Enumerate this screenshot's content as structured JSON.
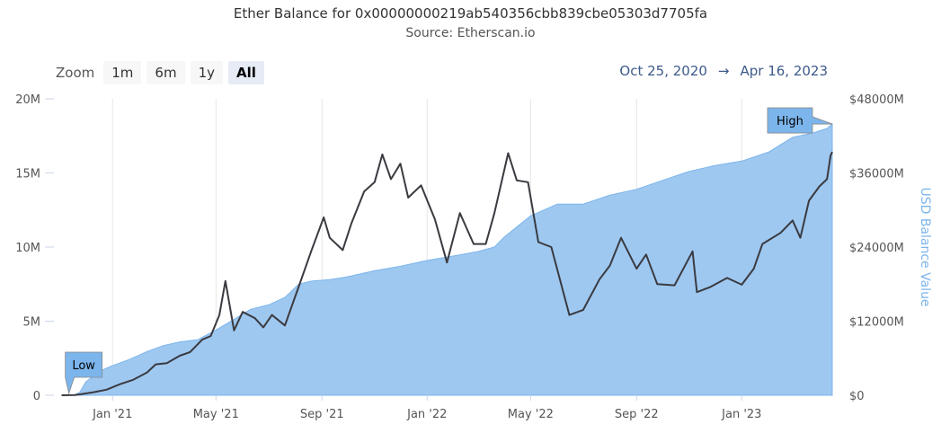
{
  "header": {
    "title": "Ether Balance for 0x00000000219ab540356cbb839cbe05303d7705fa",
    "subtitle": "Source: Etherscan.io"
  },
  "zoom": {
    "label": "Zoom",
    "buttons": [
      {
        "label": "1m",
        "active": false
      },
      {
        "label": "6m",
        "active": false
      },
      {
        "label": "1y",
        "active": false
      },
      {
        "label": "All",
        "active": true
      }
    ]
  },
  "range": {
    "from": "Oct 25, 2020",
    "arrow": "→",
    "to": "Apr 16, 2023"
  },
  "colors": {
    "area_fill": "#9ec8f0",
    "area_line": "#7cb5ec",
    "usd_line": "#3a3a40",
    "grid": "#e6e6e6",
    "flag_fill": "#7cb5ec"
  },
  "chart_data": {
    "type": "area",
    "title": "Ether Balance for 0x00000000219ab540356cbb839cbe05303d7705fa",
    "subtitle": "Source: Etherscan.io",
    "xlabel": "",
    "ylabel_left": "",
    "ylabel_right": "USD Balance Value",
    "xlim": [
      "2020-10-25",
      "2023-04-16"
    ],
    "ylim_left": [
      0,
      20000000
    ],
    "ylim_right": [
      0,
      48000000000
    ],
    "grid": "vertical",
    "legend": "none",
    "x_ticks": [
      {
        "date": "2021-01-01",
        "label": "Jan '21"
      },
      {
        "date": "2021-05-01",
        "label": "May '21"
      },
      {
        "date": "2021-09-01",
        "label": "Sep '21"
      },
      {
        "date": "2022-01-01",
        "label": "Jan '22"
      },
      {
        "date": "2022-05-01",
        "label": "May '22"
      },
      {
        "date": "2022-09-01",
        "label": "Sep '22"
      },
      {
        "date": "2023-01-01",
        "label": "Jan '23"
      }
    ],
    "y_ticks_left": [
      {
        "value": 0,
        "label": "0"
      },
      {
        "value": 5000000,
        "label": "5M"
      },
      {
        "value": 10000000,
        "label": "10M"
      },
      {
        "value": 15000000,
        "label": "15M"
      },
      {
        "value": 20000000,
        "label": "20M"
      }
    ],
    "y_ticks_right": [
      {
        "value": 0,
        "label": "$0"
      },
      {
        "value": 12000000000,
        "label": "$12000M"
      },
      {
        "value": 24000000000,
        "label": "$24000M"
      },
      {
        "value": 36000000000,
        "label": "$36000M"
      },
      {
        "value": 48000000000,
        "label": "$48000M"
      }
    ],
    "series": [
      {
        "name": "",
        "axis": "left",
        "kind": "area",
        "points": [
          [
            "2020-11-03",
            0
          ],
          [
            "2020-11-18",
            30000
          ],
          [
            "2020-11-24",
            200000
          ],
          [
            "2020-12-01",
            900000
          ],
          [
            "2020-12-10",
            1300000
          ],
          [
            "2020-12-20",
            1700000
          ],
          [
            "2021-01-01",
            2000000
          ],
          [
            "2021-01-20",
            2400000
          ],
          [
            "2021-02-10",
            2950000
          ],
          [
            "2021-03-01",
            3350000
          ],
          [
            "2021-03-20",
            3600000
          ],
          [
            "2021-04-10",
            3750000
          ],
          [
            "2021-05-01",
            4400000
          ],
          [
            "2021-05-20",
            5050000
          ],
          [
            "2021-06-10",
            5800000
          ],
          [
            "2021-07-01",
            6100000
          ],
          [
            "2021-07-20",
            6600000
          ],
          [
            "2021-08-05",
            7500000
          ],
          [
            "2021-08-20",
            7700000
          ],
          [
            "2021-09-10",
            7800000
          ],
          [
            "2021-10-01",
            8000000
          ],
          [
            "2021-11-01",
            8400000
          ],
          [
            "2021-12-01",
            8700000
          ],
          [
            "2022-01-01",
            9100000
          ],
          [
            "2022-02-01",
            9400000
          ],
          [
            "2022-03-01",
            9700000
          ],
          [
            "2022-03-20",
            10000000
          ],
          [
            "2022-04-01",
            10700000
          ],
          [
            "2022-05-01",
            12100000
          ],
          [
            "2022-06-01",
            12900000
          ],
          [
            "2022-07-01",
            12900000
          ],
          [
            "2022-08-01",
            13500000
          ],
          [
            "2022-09-01",
            13900000
          ],
          [
            "2022-10-01",
            14500000
          ],
          [
            "2022-11-01",
            15100000
          ],
          [
            "2022-12-01",
            15500000
          ],
          [
            "2023-01-01",
            15800000
          ],
          [
            "2023-02-01",
            16400000
          ],
          [
            "2023-03-01",
            17400000
          ],
          [
            "2023-03-25",
            17700000
          ],
          [
            "2023-04-10",
            18000000
          ],
          [
            "2023-04-16",
            18300000
          ]
        ]
      },
      {
        "name": "USD Balance Value",
        "axis": "right",
        "kind": "line",
        "points": [
          [
            "2020-11-03",
            0
          ],
          [
            "2020-11-18",
            40000000
          ],
          [
            "2020-11-24",
            150000000
          ],
          [
            "2020-12-10",
            500000000
          ],
          [
            "2020-12-25",
            900000000
          ],
          [
            "2021-01-10",
            1800000000
          ],
          [
            "2021-01-25",
            2500000000
          ],
          [
            "2021-02-10",
            3700000000
          ],
          [
            "2021-02-20",
            5000000000
          ],
          [
            "2021-03-05",
            5200000000
          ],
          [
            "2021-03-20",
            6400000000
          ],
          [
            "2021-04-01",
            7000000000
          ],
          [
            "2021-04-15",
            9000000000
          ],
          [
            "2021-04-25",
            9600000000
          ],
          [
            "2021-05-05",
            13000000000
          ],
          [
            "2021-05-12",
            18500000000
          ],
          [
            "2021-05-22",
            10500000000
          ],
          [
            "2021-06-01",
            13500000000
          ],
          [
            "2021-06-15",
            12500000000
          ],
          [
            "2021-06-25",
            11000000000
          ],
          [
            "2021-07-05",
            13000000000
          ],
          [
            "2021-07-20",
            11300000000
          ],
          [
            "2021-08-05",
            17600000000
          ],
          [
            "2021-08-20",
            23500000000
          ],
          [
            "2021-09-03",
            28800000000
          ],
          [
            "2021-09-10",
            25500000000
          ],
          [
            "2021-09-25",
            23500000000
          ],
          [
            "2021-10-05",
            27800000000
          ],
          [
            "2021-10-20",
            33000000000
          ],
          [
            "2021-11-01",
            34500000000
          ],
          [
            "2021-11-10",
            39000000000
          ],
          [
            "2021-11-20",
            35000000000
          ],
          [
            "2021-12-01",
            37500000000
          ],
          [
            "2021-12-10",
            32000000000
          ],
          [
            "2021-12-25",
            34000000000
          ],
          [
            "2022-01-10",
            28500000000
          ],
          [
            "2022-01-24",
            21500000000
          ],
          [
            "2022-02-08",
            29500000000
          ],
          [
            "2022-02-24",
            24500000000
          ],
          [
            "2022-03-10",
            24500000000
          ],
          [
            "2022-03-20",
            29500000000
          ],
          [
            "2022-04-05",
            39200000000
          ],
          [
            "2022-04-15",
            34800000000
          ],
          [
            "2022-04-28",
            34500000000
          ],
          [
            "2022-05-10",
            24800000000
          ],
          [
            "2022-05-25",
            24000000000
          ],
          [
            "2022-06-15",
            13000000000
          ],
          [
            "2022-07-01",
            13800000000
          ],
          [
            "2022-07-20",
            18800000000
          ],
          [
            "2022-08-01",
            21000000000
          ],
          [
            "2022-08-14",
            25500000000
          ],
          [
            "2022-09-01",
            20500000000
          ],
          [
            "2022-09-12",
            22800000000
          ],
          [
            "2022-09-25",
            18000000000
          ],
          [
            "2022-10-15",
            17800000000
          ],
          [
            "2022-11-05",
            23300000000
          ],
          [
            "2022-11-10",
            16700000000
          ],
          [
            "2022-11-25",
            17500000000
          ],
          [
            "2022-12-15",
            19000000000
          ],
          [
            "2023-01-01",
            17900000000
          ],
          [
            "2023-01-15",
            20500000000
          ],
          [
            "2023-01-25",
            24500000000
          ],
          [
            "2023-02-15",
            26300000000
          ],
          [
            "2023-03-01",
            28300000000
          ],
          [
            "2023-03-10",
            25500000000
          ],
          [
            "2023-03-20",
            31500000000
          ],
          [
            "2023-04-01",
            33800000000
          ],
          [
            "2023-04-10",
            35000000000
          ],
          [
            "2023-04-14",
            38800000000
          ],
          [
            "2023-04-16",
            39400000000
          ]
        ]
      }
    ],
    "flags": [
      {
        "label": "Low",
        "target_date": "2020-11-03",
        "target_value": 0
      },
      {
        "label": "High",
        "target_date": "2023-04-16",
        "target_value": 18300000
      }
    ]
  }
}
